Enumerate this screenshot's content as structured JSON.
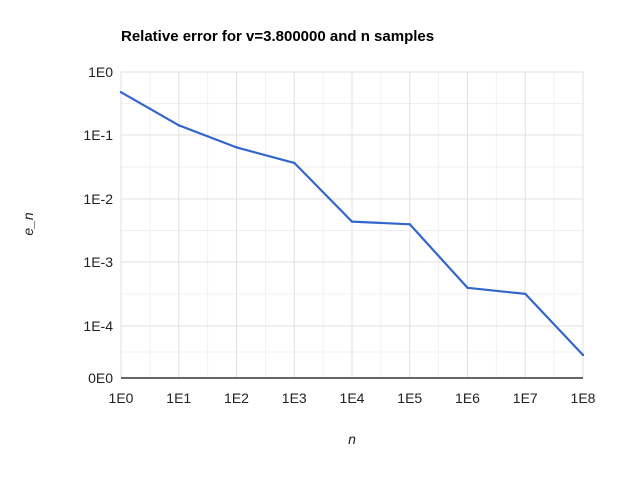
{
  "chart_data": {
    "type": "line",
    "title": "Relative error for v=3.800000 and n samples",
    "xlabel": "n",
    "ylabel": "e_n",
    "x_scale": "log",
    "y_scale": "log",
    "x_ticks": [
      "1E0",
      "1E1",
      "1E2",
      "1E3",
      "1E4",
      "1E5",
      "1E6",
      "1E7",
      "1E8"
    ],
    "y_ticks": [
      "1E0",
      "1E-1",
      "1E-2",
      "1E-3",
      "1E-4",
      "0E0"
    ],
    "grid": true,
    "legend": "none",
    "colors": {
      "series": "#3366cc",
      "grid": "#e0e0e0",
      "baseline": "#333333"
    },
    "series": [
      {
        "x": [
          1,
          10,
          100,
          1000,
          10000,
          100000,
          1000000,
          10000000,
          100000000
        ],
        "y": [
          0.48,
          0.145,
          0.065,
          0.037,
          0.0044,
          0.004,
          0.0004,
          0.00032,
          3.5e-05
        ]
      }
    ]
  }
}
